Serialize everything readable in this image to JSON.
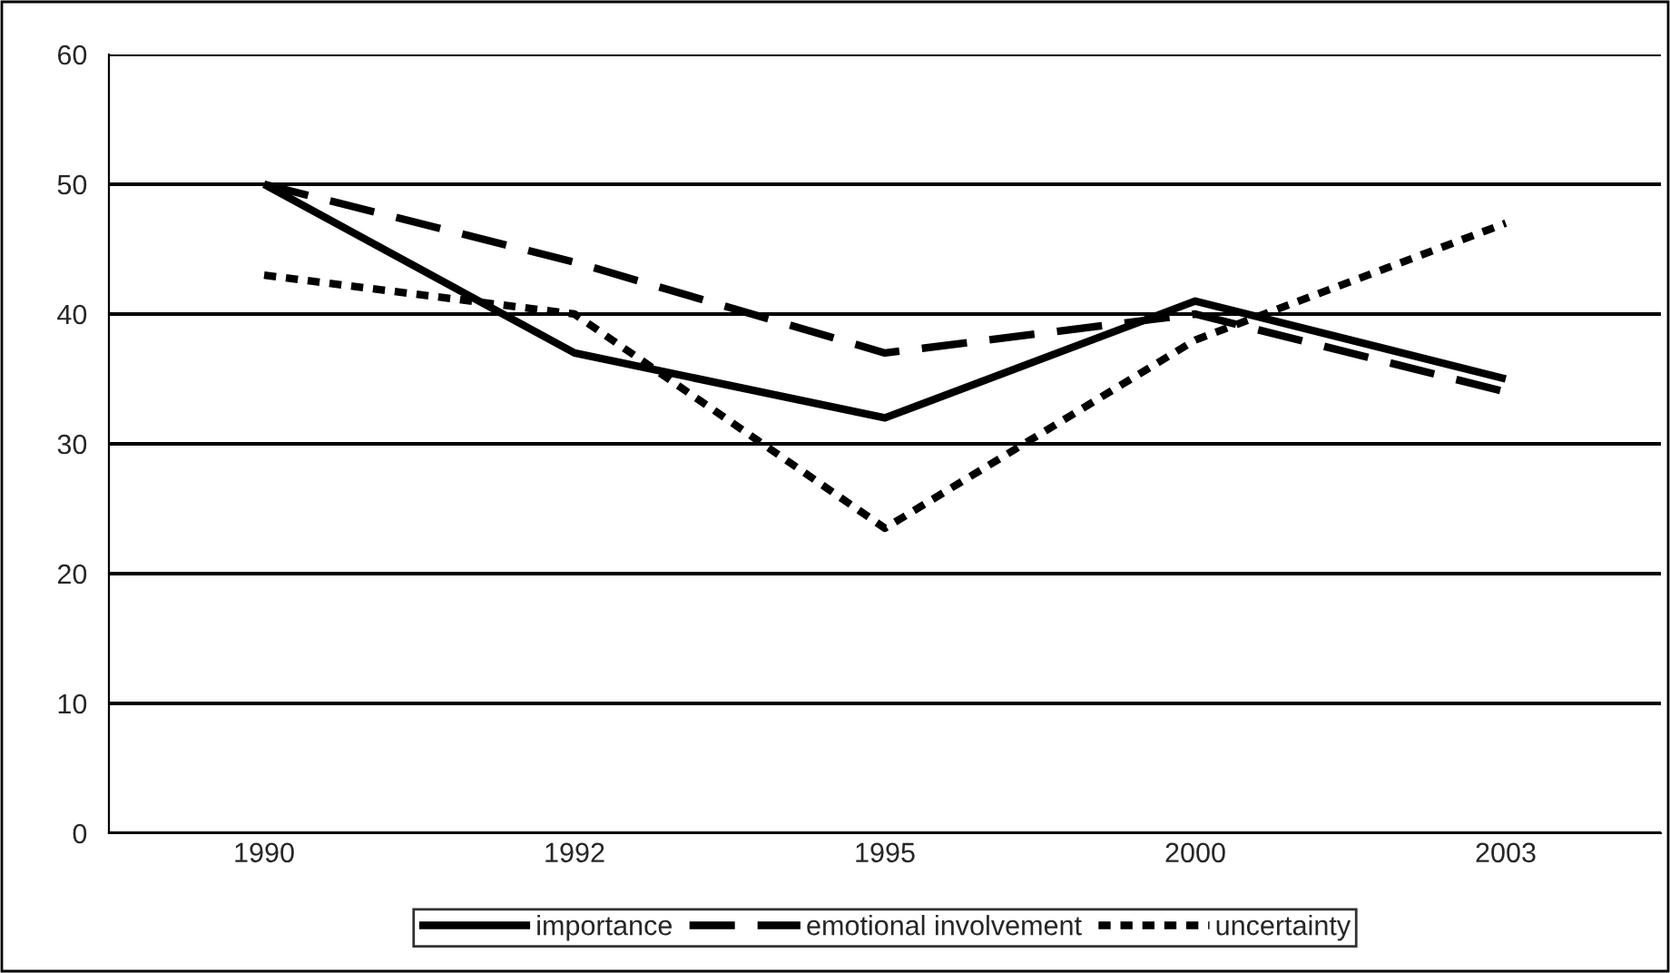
{
  "chart_data": {
    "type": "line",
    "categories": [
      "1990",
      "1992",
      "1995",
      "2000",
      "2003"
    ],
    "series": [
      {
        "name": "importance",
        "color": "#000000",
        "line_style": "solid",
        "values": [
          50,
          37,
          32,
          41,
          35
        ]
      },
      {
        "name": "emotional involvement",
        "color": "#000000",
        "line_style": "dashed",
        "values": [
          50,
          44,
          37,
          40,
          34
        ]
      },
      {
        "name": "uncertainty",
        "color": "#000000",
        "line_style": "dotted",
        "values": [
          43,
          40,
          23.5,
          38,
          47
        ]
      }
    ],
    "ylim": [
      0,
      60
    ],
    "yticks": [
      0,
      10,
      20,
      30,
      40,
      50,
      60
    ],
    "grid": "y",
    "legend": "bottom",
    "marker": "none"
  }
}
